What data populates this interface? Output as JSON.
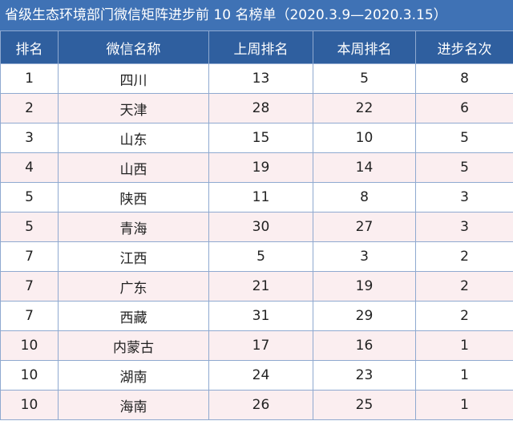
{
  "title": "省级生态环境部门微信矩阵进步前 10 名榜单（2020.3.9—2020.3.15）",
  "table": {
    "header": [
      "排名",
      "微信名称",
      "上周排名",
      "本周排名",
      "进步名次"
    ],
    "rows": [
      [
        "1",
        "四川",
        "13",
        "5",
        "8"
      ],
      [
        "2",
        "天津",
        "28",
        "22",
        "6"
      ],
      [
        "3",
        "山东",
        "15",
        "10",
        "5"
      ],
      [
        "4",
        "山西",
        "19",
        "14",
        "5"
      ],
      [
        "5",
        "陕西",
        "11",
        "8",
        "3"
      ],
      [
        "5",
        "青海",
        "30",
        "27",
        "3"
      ],
      [
        "7",
        "江西",
        "5",
        "3",
        "2"
      ],
      [
        "7",
        "广东",
        "21",
        "19",
        "2"
      ],
      [
        "7",
        "西藏",
        "31",
        "29",
        "2"
      ],
      [
        "10",
        "内蒙古",
        "17",
        "16",
        "1"
      ],
      [
        "10",
        "湖南",
        "24",
        "23",
        "1"
      ],
      [
        "10",
        "海南",
        "26",
        "25",
        "1"
      ]
    ]
  }
}
